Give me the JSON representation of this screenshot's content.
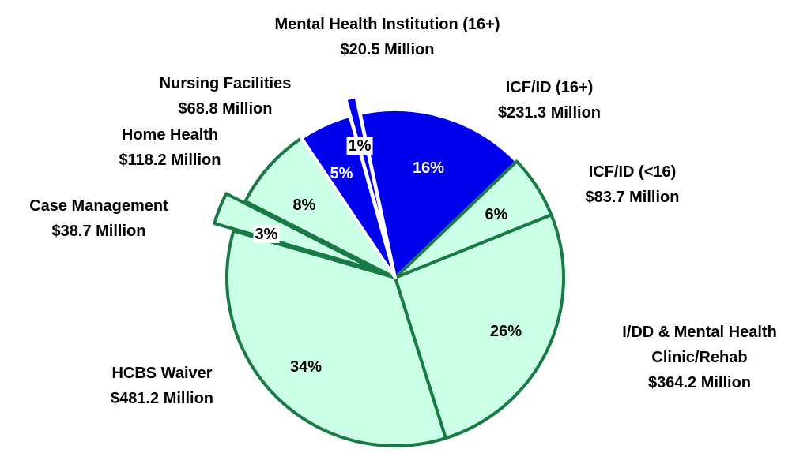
{
  "chart_data": {
    "type": "pie",
    "categories": [
      "ICF/ID (16+)",
      "ICF/ID (<16)",
      "I/DD & Mental Health Clinic/Rehab",
      "HCBS Waiver",
      "Case Management",
      "Home Health",
      "Nursing Facilities",
      "Mental Health Institution (16+)"
    ],
    "amounts": [
      "$231.3 Million",
      "$83.7 Million",
      "$364.2 Million",
      "$481.2 Million",
      "$38.7 Million",
      "$118.2 Million",
      "$68.8 Million",
      "$20.5 Million"
    ],
    "values": [
      16,
      6,
      26,
      34,
      3,
      8,
      5,
      1
    ],
    "value_labels": [
      "16%",
      "6%",
      "26%",
      "34%",
      "3%",
      "8%",
      "5%",
      "1%"
    ],
    "colors": [
      "#0000ee",
      "#ccffe8",
      "#ccffe8",
      "#ccffe8",
      "#ccffe8",
      "#ccffe8",
      "#0000ee",
      "#0000ee"
    ],
    "edge_colors": [
      "#ffffff",
      "#1a7a45",
      "#1a7a45",
      "#1a7a45",
      "#1a7a45",
      "#1a7a45",
      "#ffffff",
      "#ffffff"
    ]
  }
}
